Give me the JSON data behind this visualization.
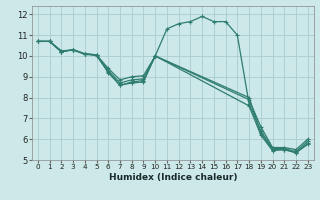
{
  "title": "",
  "xlabel": "Humidex (Indice chaleur)",
  "background_color": "#cce8e8",
  "grid_color": "#aacccc",
  "line_color": "#2e7d6e",
  "xlim": [
    -0.5,
    23.5
  ],
  "ylim": [
    5,
    12.4
  ],
  "xticks": [
    0,
    1,
    2,
    3,
    4,
    5,
    6,
    7,
    8,
    9,
    10,
    11,
    12,
    13,
    14,
    15,
    16,
    17,
    18,
    19,
    20,
    21,
    22,
    23
  ],
  "yticks": [
    5,
    6,
    7,
    8,
    9,
    10,
    11,
    12
  ],
  "series": [
    {
      "x": [
        0,
        1,
        2,
        3,
        4,
        5,
        6,
        7,
        8,
        9,
        10,
        11,
        12,
        13,
        14,
        15,
        16,
        17,
        18,
        19,
        20,
        21,
        22,
        23
      ],
      "y": [
        10.7,
        10.7,
        10.2,
        10.3,
        10.1,
        10.05,
        9.3,
        8.7,
        8.85,
        8.9,
        10.0,
        11.3,
        11.55,
        11.65,
        11.9,
        11.65,
        11.65,
        11.0,
        7.7,
        6.4,
        5.55,
        5.55,
        5.4,
        5.9
      ]
    },
    {
      "x": [
        0,
        1,
        2,
        3,
        4,
        5,
        6,
        7,
        8,
        9,
        10,
        18,
        19,
        20,
        21,
        22,
        23
      ],
      "y": [
        10.7,
        10.7,
        10.2,
        10.3,
        10.1,
        10.05,
        9.4,
        8.85,
        9.0,
        9.05,
        10.0,
        7.9,
        6.6,
        5.6,
        5.6,
        5.5,
        6.0
      ]
    },
    {
      "x": [
        0,
        1,
        2,
        3,
        4,
        5,
        6,
        7,
        8,
        9,
        10,
        18,
        19,
        20,
        21,
        22,
        23
      ],
      "y": [
        10.7,
        10.7,
        10.2,
        10.3,
        10.1,
        10.05,
        9.2,
        8.6,
        8.7,
        8.75,
        10.0,
        8.0,
        6.3,
        5.5,
        5.5,
        5.35,
        5.8
      ]
    },
    {
      "x": [
        0,
        1,
        2,
        3,
        4,
        5,
        6,
        7,
        8,
        9,
        10,
        18,
        19,
        20,
        21,
        22,
        23
      ],
      "y": [
        10.7,
        10.7,
        10.25,
        10.28,
        10.08,
        10.02,
        9.22,
        8.58,
        8.75,
        8.82,
        10.0,
        7.6,
        6.2,
        5.45,
        5.5,
        5.35,
        5.75
      ]
    }
  ]
}
